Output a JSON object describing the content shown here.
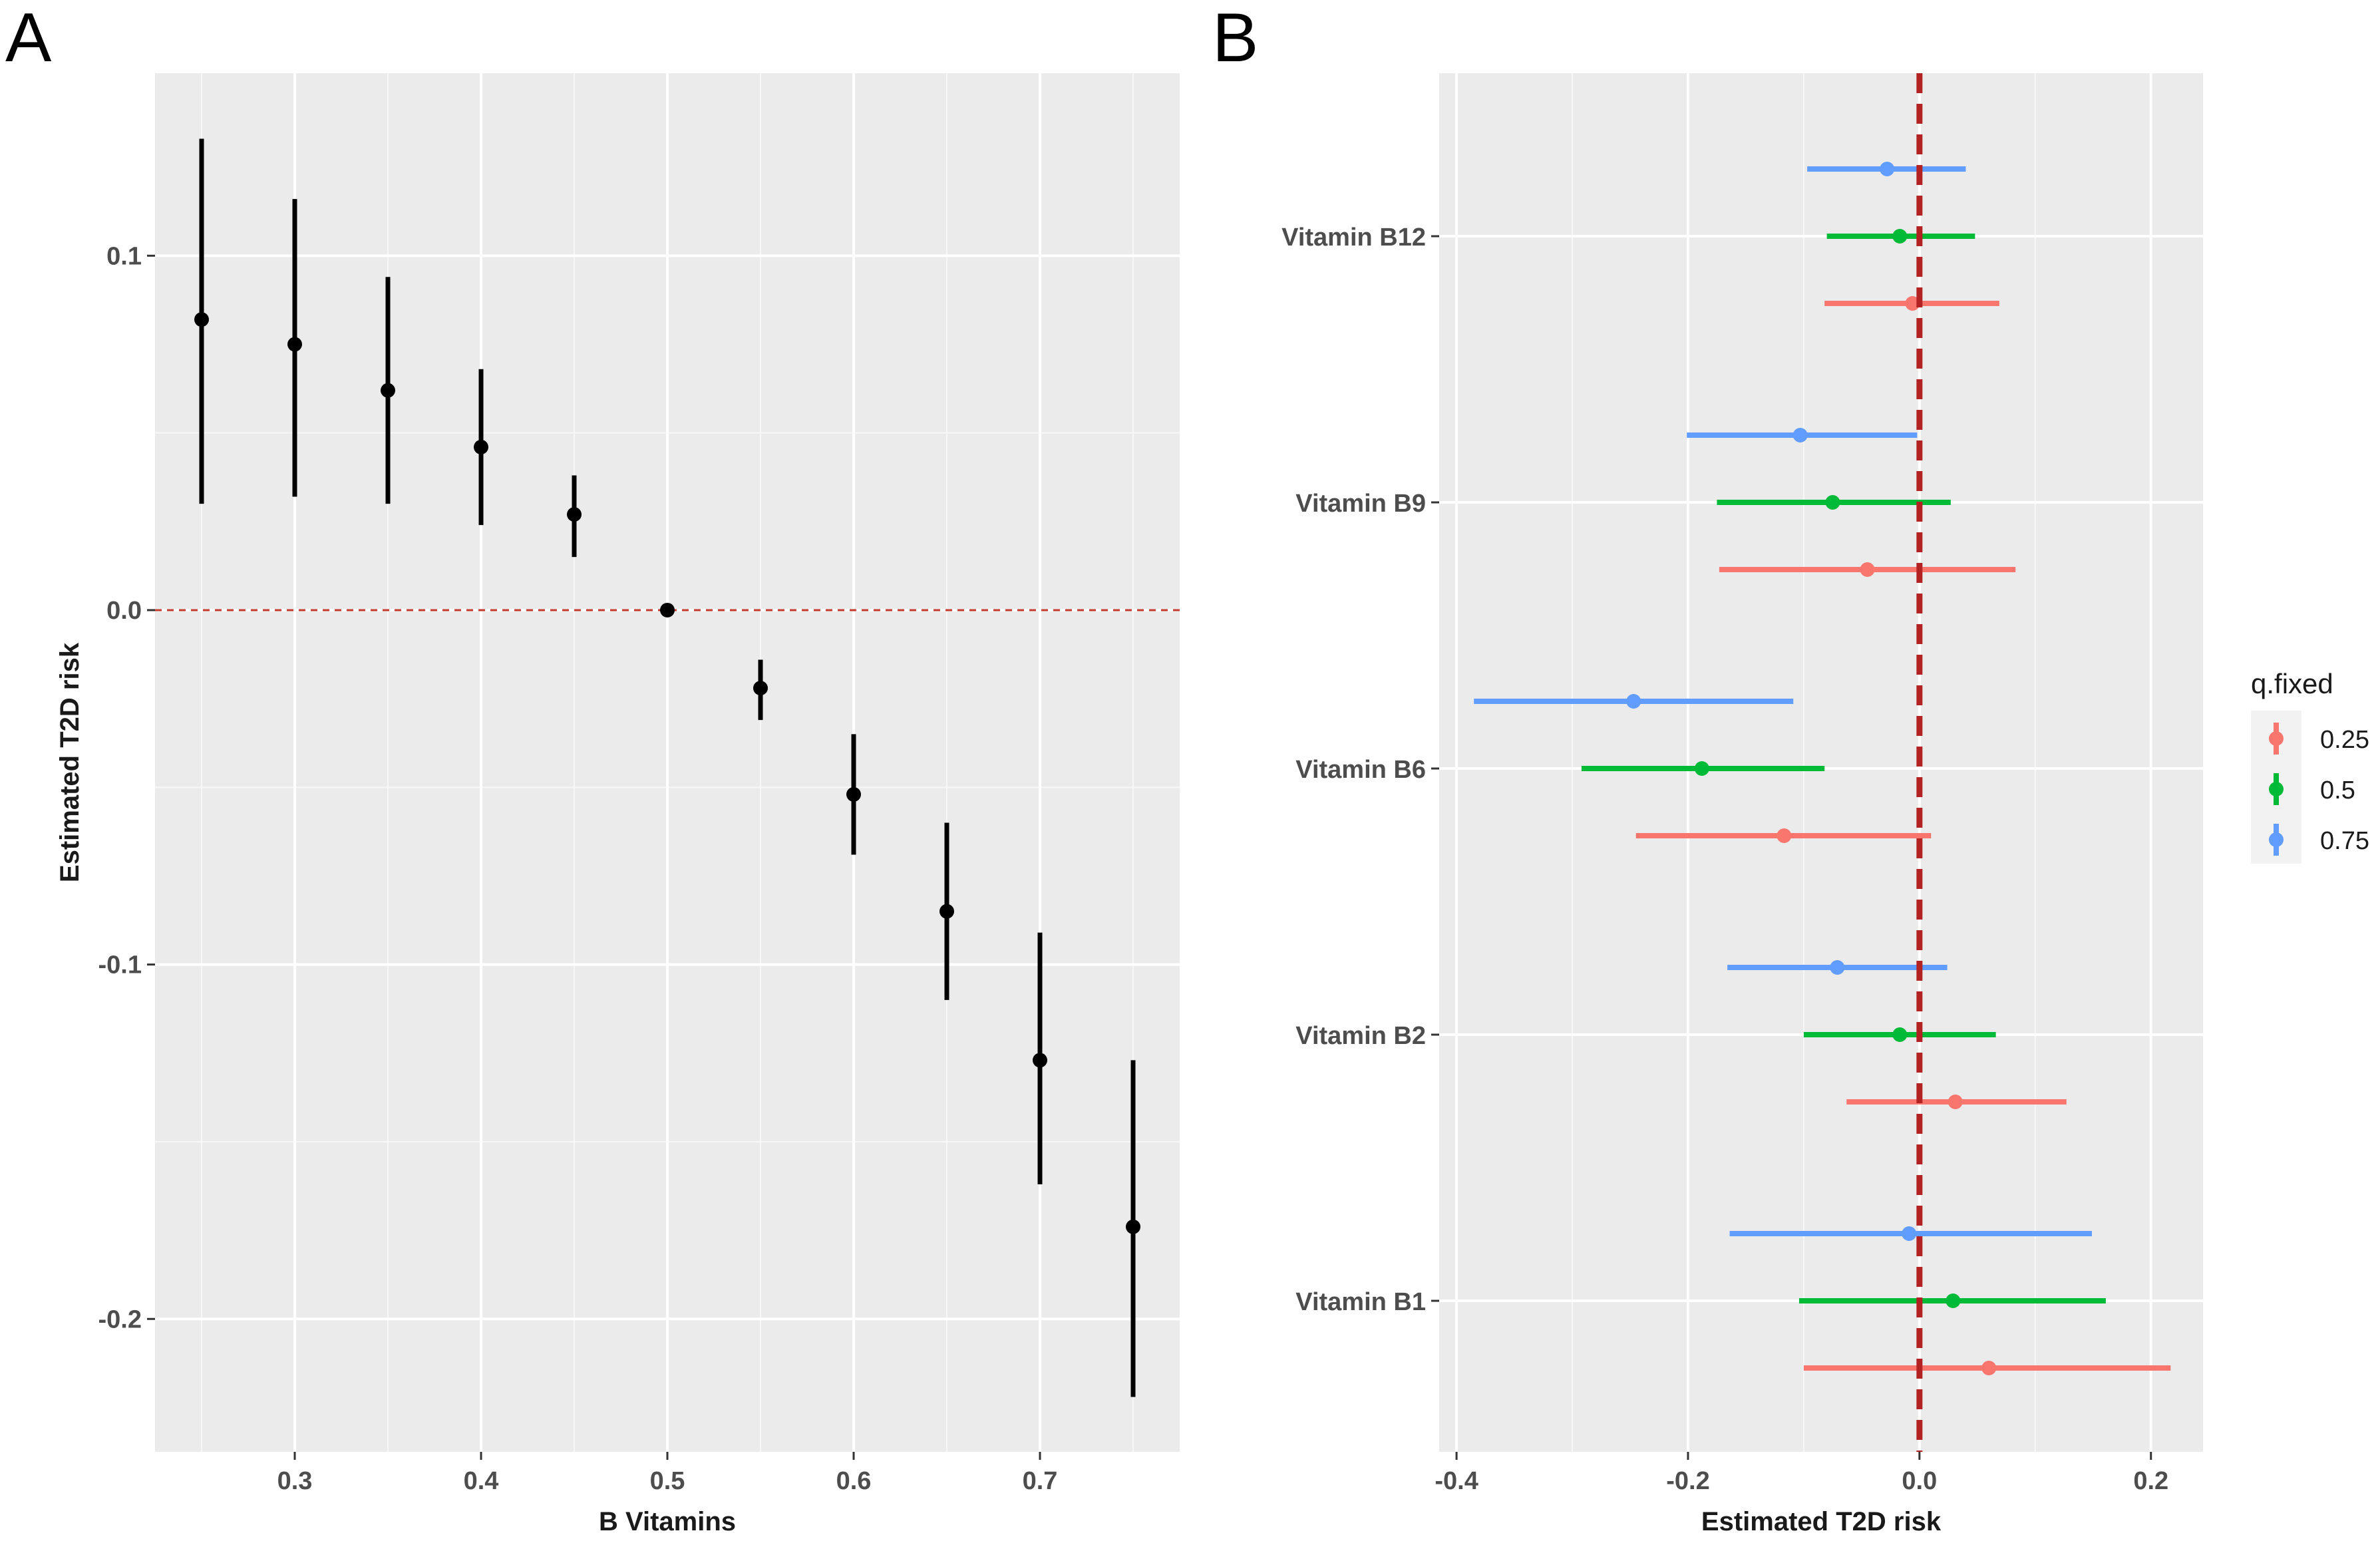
{
  "panels": {
    "a_label": "A",
    "b_label": "B"
  },
  "chart_data": [
    {
      "type": "errorbar",
      "panel": "A",
      "xlabel": "B Vitamins",
      "ylabel": "Estimated T2D risk",
      "xlim": [
        0.225,
        0.775
      ],
      "ylim": [
        -0.2375,
        0.1515
      ],
      "x_ticks": [
        {
          "value": 0.3,
          "label": "0.3"
        },
        {
          "value": 0.4,
          "label": "0.4"
        },
        {
          "value": 0.5,
          "label": "0.5"
        },
        {
          "value": 0.6,
          "label": "0.6"
        },
        {
          "value": 0.7,
          "label": "0.7"
        }
      ],
      "y_ticks": [
        {
          "value": 0.1,
          "label": "0.1"
        },
        {
          "value": 0.0,
          "label": "0.0"
        },
        {
          "value": -0.1,
          "label": "-0.1"
        },
        {
          "value": -0.2,
          "label": "-0.2"
        }
      ],
      "reference_line": {
        "y": 0,
        "color": "#c0392b",
        "style": "dashed"
      },
      "points": [
        {
          "x": 0.25,
          "y": 0.082,
          "lower": 0.03,
          "upper": 0.133
        },
        {
          "x": 0.3,
          "y": 0.075,
          "lower": 0.032,
          "upper": 0.116
        },
        {
          "x": 0.35,
          "y": 0.062,
          "lower": 0.03,
          "upper": 0.094
        },
        {
          "x": 0.4,
          "y": 0.046,
          "lower": 0.024,
          "upper": 0.068
        },
        {
          "x": 0.45,
          "y": 0.027,
          "lower": 0.015,
          "upper": 0.038
        },
        {
          "x": 0.5,
          "y": 0.0,
          "lower": 0.0,
          "upper": 0.0
        },
        {
          "x": 0.55,
          "y": -0.022,
          "lower": -0.031,
          "upper": -0.014
        },
        {
          "x": 0.6,
          "y": -0.052,
          "lower": -0.069,
          "upper": -0.035
        },
        {
          "x": 0.65,
          "y": -0.085,
          "lower": -0.11,
          "upper": -0.06
        },
        {
          "x": 0.7,
          "y": -0.127,
          "lower": -0.162,
          "upper": -0.091
        },
        {
          "x": 0.75,
          "y": -0.174,
          "lower": -0.222,
          "upper": -0.127
        }
      ]
    },
    {
      "type": "forest",
      "panel": "B",
      "xlabel": "Estimated T2D risk",
      "ylabel": "",
      "xlim": [
        -0.415,
        0.245
      ],
      "x_ticks": [
        {
          "value": -0.4,
          "label": "-0.4"
        },
        {
          "value": -0.2,
          "label": "-0.2"
        },
        {
          "value": 0.0,
          "label": "0.0"
        },
        {
          "value": 0.2,
          "label": "0.2"
        }
      ],
      "categories": [
        "Vitamin B12",
        "Vitamin B9",
        "Vitamin B6",
        "Vitamin B2",
        "Vitamin B1"
      ],
      "reference_line": {
        "x": 0,
        "color": "#b22222",
        "style": "dashed"
      },
      "legend": {
        "title": "q.fixed",
        "position": "right",
        "entries": [
          {
            "label": "0.25",
            "color": "#f8766d"
          },
          {
            "label": "0.5",
            "color": "#00ba38"
          },
          {
            "label": "0.75",
            "color": "#619cff"
          }
        ]
      },
      "series": [
        {
          "name": "0.25",
          "color": "#f8766d",
          "values": [
            {
              "category": "Vitamin B12",
              "estimate": -0.006,
              "lower": -0.082,
              "upper": 0.069
            },
            {
              "category": "Vitamin B9",
              "estimate": -0.045,
              "lower": -0.173,
              "upper": 0.083
            },
            {
              "category": "Vitamin B6",
              "estimate": -0.117,
              "lower": -0.245,
              "upper": 0.01
            },
            {
              "category": "Vitamin B2",
              "estimate": 0.031,
              "lower": -0.063,
              "upper": 0.127
            },
            {
              "category": "Vitamin B1",
              "estimate": 0.06,
              "lower": -0.1,
              "upper": 0.217
            }
          ]
        },
        {
          "name": "0.5",
          "color": "#00ba38",
          "values": [
            {
              "category": "Vitamin B12",
              "estimate": -0.017,
              "lower": -0.08,
              "upper": 0.048
            },
            {
              "category": "Vitamin B9",
              "estimate": -0.075,
              "lower": -0.175,
              "upper": 0.027
            },
            {
              "category": "Vitamin B6",
              "estimate": -0.188,
              "lower": -0.292,
              "upper": -0.082
            },
            {
              "category": "Vitamin B2",
              "estimate": -0.017,
              "lower": -0.1,
              "upper": 0.066
            },
            {
              "category": "Vitamin B1",
              "estimate": 0.029,
              "lower": -0.104,
              "upper": 0.161
            }
          ]
        },
        {
          "name": "0.75",
          "color": "#619cff",
          "values": [
            {
              "category": "Vitamin B12",
              "estimate": -0.028,
              "lower": -0.097,
              "upper": 0.04
            },
            {
              "category": "Vitamin B9",
              "estimate": -0.103,
              "lower": -0.201,
              "upper": -0.002
            },
            {
              "category": "Vitamin B6",
              "estimate": -0.247,
              "lower": -0.385,
              "upper": -0.109
            },
            {
              "category": "Vitamin B2",
              "estimate": -0.071,
              "lower": -0.166,
              "upper": 0.024
            },
            {
              "category": "Vitamin B1",
              "estimate": -0.009,
              "lower": -0.164,
              "upper": 0.149
            }
          ]
        }
      ]
    }
  ]
}
